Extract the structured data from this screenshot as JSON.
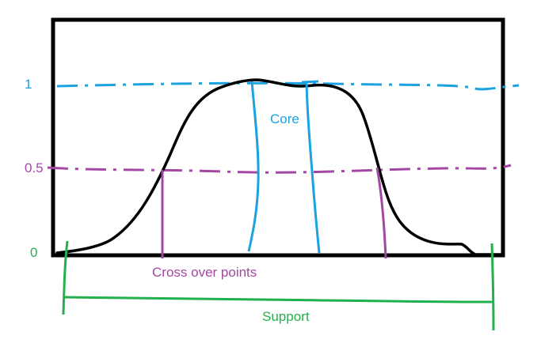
{
  "labels": {
    "y_one": "1",
    "y_half": "0.5",
    "y_zero": "0",
    "core": "Core",
    "crossover": "Cross over points",
    "support": "Support"
  },
  "colors": {
    "frame": "#000000",
    "curve": "#000000",
    "core": "#1aa3e0",
    "crossover": "#a347a3",
    "support": "#22b14c",
    "background": "#ffffff"
  }
}
